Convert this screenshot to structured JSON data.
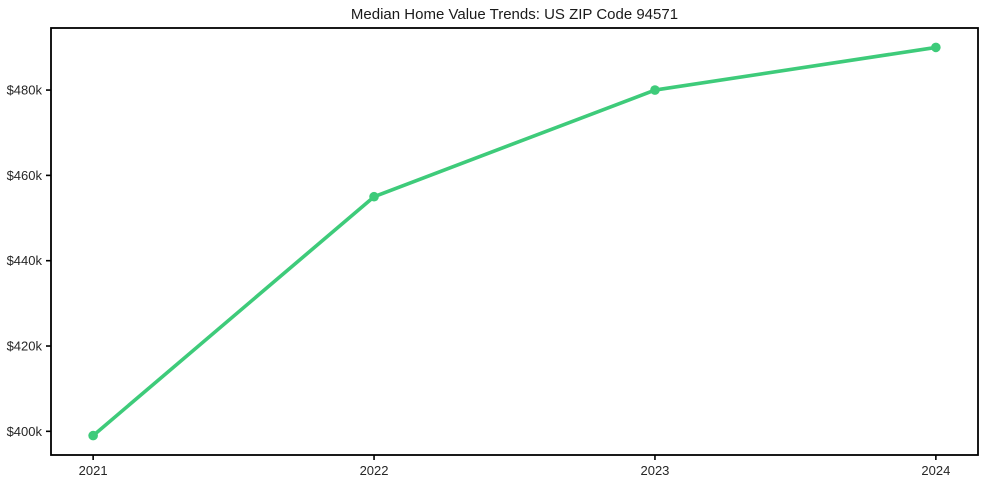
{
  "chart_data": {
    "type": "line",
    "title": "Median Home Value Trends: US ZIP Code 94571",
    "categories": [
      "2021",
      "2022",
      "2023",
      "2024"
    ],
    "x": [
      2021,
      2022,
      2023,
      2024
    ],
    "series": [
      {
        "name": "Median Home Value",
        "values": [
          399000,
          455000,
          480000,
          490000
        ]
      }
    ],
    "y_ticks": [
      400000,
      420000,
      440000,
      460000,
      480000
    ],
    "y_tick_labels": [
      "$400k",
      "$420k",
      "$440k",
      "$460k",
      "$480k"
    ],
    "x_tick_labels": [
      "2021",
      "2022",
      "2023",
      "2024"
    ],
    "xlim": [
      2020.85,
      2024.15
    ],
    "ylim": [
      394450,
      494550
    ],
    "grid": false,
    "legend": "none",
    "line_color": "#3ecb7a",
    "frame_color": "#000000",
    "text_color": "#262626",
    "background_color": "#ffffff"
  }
}
